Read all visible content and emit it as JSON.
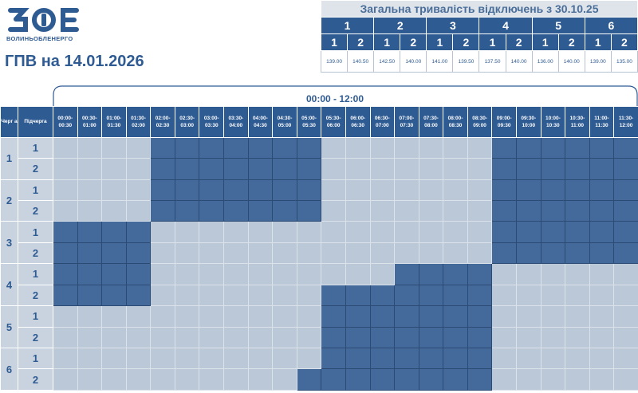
{
  "logo": {
    "mark": "ЗОЕ",
    "text": "ВОЛИНЬОБЛЕНЕРГО"
  },
  "page_title": "ГПВ на 14.01.2026",
  "summary": {
    "title": "Загальна тривалість відключень з 30.10.25",
    "queues": [
      "1",
      "2",
      "3",
      "4",
      "5",
      "6"
    ],
    "subqueues": [
      "1",
      "2",
      "1",
      "2",
      "1",
      "2",
      "1",
      "2",
      "1",
      "2",
      "1",
      "2"
    ],
    "durations": [
      "139.00",
      "140.50",
      "142.50",
      "140.00",
      "141.00",
      "139.50",
      "137.50",
      "140.00",
      "136.00",
      "140.00",
      "139.00",
      "135.00"
    ]
  },
  "schedule": {
    "period": "00:00 - 12:00",
    "queue_header": "Черг а",
    "subqueue_header": "Підчерга",
    "time_slots": [
      "00:00- 00:30",
      "00:30- 01:00",
      "01:00- 01:30",
      "01:30- 02:00",
      "02:00- 02:30",
      "02:30- 03:00",
      "03:00- 03:30",
      "03:30- 04:00",
      "04:00- 04:30",
      "04:30- 05:00",
      "05:00- 05:30",
      "05:30- 06:00",
      "06:00- 06:30",
      "06:30- 07:00",
      "07:00- 07:30",
      "07:30- 08:00",
      "08:00- 08:30",
      "08:30- 09:00",
      "09:00- 09:30",
      "09:30- 10:00",
      "10:00- 10:30",
      "10:30- 11:00",
      "11:00- 11:30",
      "11:30- 12:00"
    ],
    "rows": [
      {
        "queue": "1",
        "sub": "1",
        "off": [
          0,
          0,
          0,
          0,
          1,
          1,
          1,
          1,
          1,
          1,
          1,
          0,
          0,
          0,
          0,
          0,
          0,
          0,
          1,
          1,
          1,
          1,
          1,
          1
        ]
      },
      {
        "queue": "1",
        "sub": "2",
        "off": [
          0,
          0,
          0,
          0,
          1,
          1,
          1,
          1,
          1,
          1,
          1,
          0,
          0,
          0,
          0,
          0,
          0,
          0,
          1,
          1,
          1,
          1,
          1,
          1
        ]
      },
      {
        "queue": "2",
        "sub": "1",
        "off": [
          0,
          0,
          0,
          0,
          1,
          1,
          1,
          1,
          1,
          1,
          1,
          0,
          0,
          0,
          0,
          0,
          0,
          0,
          1,
          1,
          1,
          1,
          1,
          1
        ]
      },
      {
        "queue": "2",
        "sub": "2",
        "off": [
          0,
          0,
          0,
          0,
          1,
          1,
          1,
          1,
          1,
          1,
          1,
          0,
          0,
          0,
          0,
          0,
          0,
          0,
          1,
          1,
          1,
          1,
          1,
          1
        ]
      },
      {
        "queue": "3",
        "sub": "1",
        "off": [
          1,
          1,
          1,
          1,
          0,
          0,
          0,
          0,
          0,
          0,
          0,
          0,
          0,
          0,
          0,
          0,
          0,
          0,
          1,
          1,
          1,
          1,
          1,
          1
        ]
      },
      {
        "queue": "3",
        "sub": "2",
        "off": [
          1,
          1,
          1,
          1,
          0,
          0,
          0,
          0,
          0,
          0,
          0,
          0,
          0,
          0,
          0,
          0,
          0,
          0,
          1,
          1,
          1,
          1,
          1,
          1
        ]
      },
      {
        "queue": "4",
        "sub": "1",
        "off": [
          1,
          1,
          1,
          1,
          0,
          0,
          0,
          0,
          0,
          0,
          0,
          0,
          0,
          0,
          1,
          1,
          1,
          1,
          0,
          0,
          0,
          0,
          0,
          0
        ]
      },
      {
        "queue": "4",
        "sub": "2",
        "off": [
          1,
          1,
          1,
          1,
          0,
          0,
          0,
          0,
          0,
          0,
          0,
          1,
          1,
          1,
          1,
          1,
          1,
          1,
          0,
          0,
          0,
          0,
          0,
          0
        ]
      },
      {
        "queue": "5",
        "sub": "1",
        "off": [
          0,
          0,
          0,
          0,
          0,
          0,
          0,
          0,
          0,
          0,
          0,
          1,
          1,
          1,
          1,
          1,
          1,
          1,
          0,
          0,
          0,
          0,
          0,
          0
        ]
      },
      {
        "queue": "5",
        "sub": "2",
        "off": [
          0,
          0,
          0,
          0,
          0,
          0,
          0,
          0,
          0,
          0,
          0,
          1,
          1,
          1,
          1,
          1,
          1,
          1,
          0,
          0,
          0,
          0,
          0,
          0
        ]
      },
      {
        "queue": "6",
        "sub": "1",
        "off": [
          0,
          0,
          0,
          0,
          0,
          0,
          0,
          0,
          0,
          0,
          0,
          1,
          1,
          1,
          1,
          1,
          1,
          1,
          0,
          0,
          0,
          0,
          0,
          0
        ]
      },
      {
        "queue": "6",
        "sub": "2",
        "off": [
          0,
          0,
          0,
          0,
          0,
          0,
          0,
          0,
          0,
          0,
          1,
          1,
          1,
          1,
          1,
          1,
          1,
          1,
          0,
          0,
          0,
          0,
          0,
          0
        ]
      }
    ]
  },
  "colors": {
    "off": "#44699b",
    "on": "#bac8d8",
    "header": "#2f5b93"
  }
}
